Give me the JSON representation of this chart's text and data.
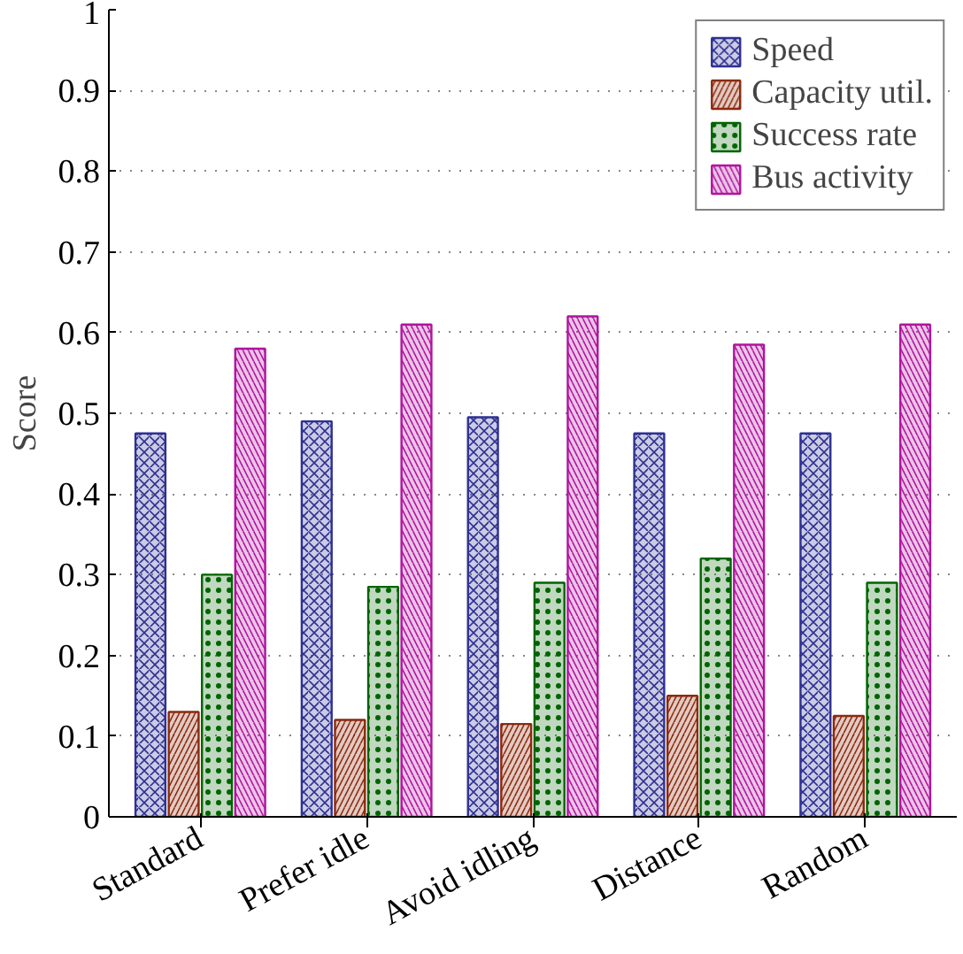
{
  "chart_data": {
    "type": "bar",
    "ylabel": "Score",
    "categories": [
      "Standard",
      "Prefer idle",
      "Avoid idling",
      "Distance",
      "Random"
    ],
    "series": [
      {
        "name": "Speed",
        "color": "#2e3192",
        "values": [
          0.475,
          0.49,
          0.495,
          0.475,
          0.475
        ]
      },
      {
        "name": "Capacity util.",
        "color": "#8b2a0e",
        "values": [
          0.13,
          0.12,
          0.115,
          0.15,
          0.125
        ]
      },
      {
        "name": "Success rate",
        "color": "#006400",
        "values": [
          0.3,
          0.285,
          0.29,
          0.32,
          0.29
        ]
      },
      {
        "name": "Bus activity",
        "color": "#b0149e",
        "values": [
          0.58,
          0.61,
          0.62,
          0.585,
          0.61
        ]
      }
    ],
    "ylim": [
      0,
      1
    ],
    "yticks": [
      0,
      0.1,
      0.2,
      0.3,
      0.4,
      0.5,
      0.6,
      0.7,
      0.8,
      0.9,
      1
    ],
    "grid": "y",
    "legend": "top right"
  }
}
